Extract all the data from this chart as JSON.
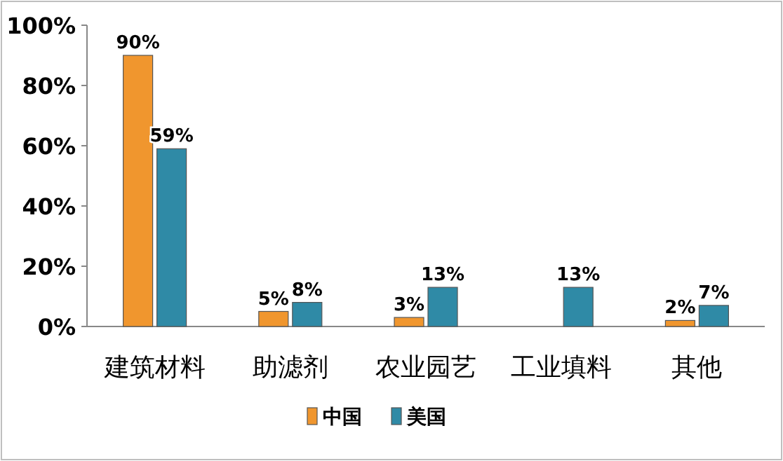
{
  "chart_data": {
    "type": "bar",
    "categories": [
      "建筑材料",
      "助滤剂",
      "农业园艺",
      "工业填料",
      "其他"
    ],
    "series": [
      {
        "name": "中国",
        "color": "#f0962e",
        "values": [
          90,
          5,
          3,
          null,
          2
        ],
        "value_labels": [
          "90%",
          "5%",
          "3%",
          null,
          "2%"
        ]
      },
      {
        "name": "美国",
        "color": "#2f8aa6",
        "values": [
          59,
          8,
          13,
          13,
          7
        ],
        "value_labels": [
          "59%",
          "8%",
          "13%",
          "13%",
          "7%"
        ]
      }
    ],
    "ylim": [
      0,
      100
    ],
    "yticks": [
      {
        "value": 0,
        "label": "0%"
      },
      {
        "value": 20,
        "label": "20%"
      },
      {
        "value": 40,
        "label": "40%"
      },
      {
        "value": 60,
        "label": "60%"
      },
      {
        "value": 80,
        "label": "80%"
      },
      {
        "value": 100,
        "label": "100%"
      }
    ],
    "grid": false,
    "legend": "bottom"
  }
}
